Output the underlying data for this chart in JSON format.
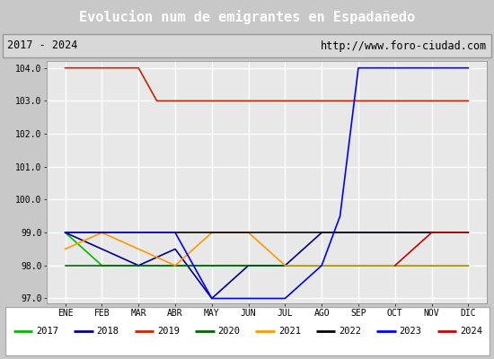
{
  "title": "Evolucion num de emigrantes en Espadañedo",
  "title_bg": "#4e7dbf",
  "subtitle_left": "2017 - 2024",
  "subtitle_right": "http://www.foro-ciudad.com",
  "months": [
    "ENE",
    "FEB",
    "MAR",
    "ABR",
    "MAY",
    "JUN",
    "JUL",
    "AGO",
    "SEP",
    "OCT",
    "NOV",
    "DIC"
  ],
  "month_indices": [
    1,
    2,
    3,
    4,
    5,
    6,
    7,
    8,
    9,
    10,
    11,
    12
  ],
  "ylim_min": 96.85,
  "ylim_max": 104.21,
  "yticks": [
    97.0,
    98.0,
    99.0,
    100.0,
    101.0,
    102.0,
    103.0,
    104.0
  ],
  "series": {
    "2017": {
      "color": "#00bb00",
      "x": [
        1,
        2,
        3,
        12
      ],
      "y": [
        99.0,
        98.0,
        98.0,
        98.0
      ]
    },
    "2018": {
      "color": "#00008b",
      "x": [
        1,
        2,
        3,
        4,
        5,
        6,
        7,
        8,
        12
      ],
      "y": [
        99.0,
        98.5,
        98.0,
        98.5,
        97.0,
        98.0,
        98.0,
        99.0,
        99.0
      ]
    },
    "2019": {
      "color": "#cc2200",
      "x": [
        1,
        2,
        3,
        3.5,
        4,
        12
      ],
      "y": [
        104.0,
        104.0,
        104.0,
        103.0,
        103.0,
        103.0
      ]
    },
    "2020": {
      "color": "#006600",
      "x": [
        1,
        2,
        3,
        4,
        5,
        6,
        7,
        8,
        9,
        10,
        11,
        12
      ],
      "y": [
        98.0,
        98.0,
        98.0,
        98.0,
        98.0,
        98.0,
        98.0,
        98.0,
        98.0,
        98.0,
        98.0,
        98.0
      ]
    },
    "2021": {
      "color": "#ff9900",
      "x": [
        1,
        2,
        3,
        4,
        5,
        6,
        7,
        8,
        9,
        10,
        11,
        12
      ],
      "y": [
        98.5,
        99.0,
        98.5,
        98.0,
        99.0,
        99.0,
        98.0,
        98.0,
        98.0,
        98.0,
        98.0,
        98.0
      ]
    },
    "2022": {
      "color": "#000000",
      "x": [
        1,
        12
      ],
      "y": [
        99.0,
        99.0
      ]
    },
    "2023": {
      "color": "#0000ff",
      "x": [
        1,
        2,
        3,
        4,
        5,
        6,
        7,
        7.5,
        8,
        8.5,
        9,
        10,
        11,
        12
      ],
      "y": [
        99.0,
        99.0,
        99.0,
        99.0,
        97.0,
        97.0,
        97.0,
        97.5,
        98.0,
        99.5,
        104.0,
        104.0,
        104.0,
        104.0
      ]
    },
    "2024": {
      "color": "#cc0000",
      "x": [
        10,
        11,
        12
      ],
      "y": [
        98.0,
        99.0,
        99.0
      ]
    }
  },
  "legend_order": [
    "2017",
    "2018",
    "2019",
    "2020",
    "2021",
    "2022",
    "2023",
    "2024"
  ],
  "bg_plot": "#e8e8e8",
  "bg_figure": "#c8c8c8",
  "bg_subtitle": "#d8d8d8",
  "grid_color": "#ffffff",
  "line_width": 1.2
}
